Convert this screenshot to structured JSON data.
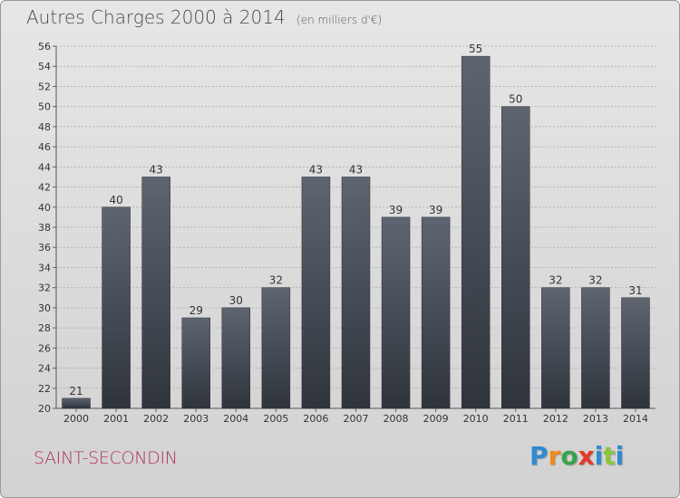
{
  "header": {
    "title": "Autres Charges 2000 à 2014",
    "unit": "(en milliers d'€)"
  },
  "footer": {
    "commune": "SAINT-SECONDIN",
    "logo_text": "Proxiti"
  },
  "colors": {
    "bar_top": "#5e6570",
    "bar_bottom": "#2f343c",
    "commune": "#b0325a",
    "logo": [
      "#2e8bd1",
      "#f08a1c",
      "#3aa24a",
      "#e23a2a",
      "#2e8bd1",
      "#8cc63f",
      "#2e8bd1"
    ]
  },
  "chart_data": {
    "type": "bar",
    "categories": [
      "2000",
      "2001",
      "2002",
      "2003",
      "2004",
      "2005",
      "2006",
      "2007",
      "2008",
      "2009",
      "2010",
      "2011",
      "2012",
      "2013",
      "2014"
    ],
    "values": [
      21,
      40,
      43,
      29,
      30,
      32,
      43,
      43,
      39,
      39,
      55,
      50,
      32,
      32,
      31
    ],
    "title": "Autres Charges 2000 à 2014",
    "subtitle": "(en milliers d'€)",
    "ylim": [
      20,
      56
    ],
    "yticks": [
      20,
      22,
      24,
      26,
      28,
      30,
      32,
      34,
      36,
      38,
      40,
      42,
      44,
      46,
      48,
      50,
      52,
      54,
      56
    ],
    "grid": true,
    "data_labels": true
  }
}
